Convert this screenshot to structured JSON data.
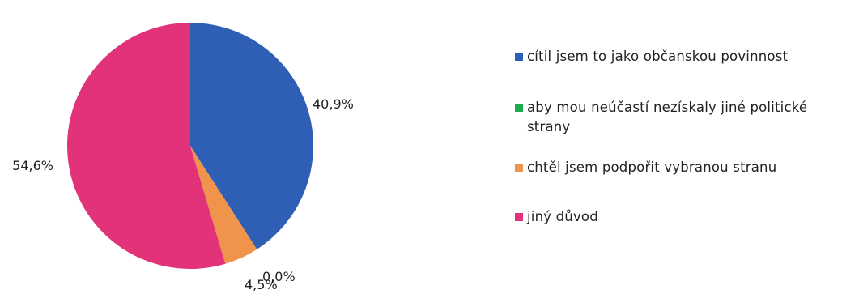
{
  "chart_data": {
    "type": "pie",
    "start_angle_deg": 0,
    "direction": "clockwise",
    "slices": [
      {
        "label": "cítil jsem to jako občanskou povinnost",
        "value": 40.9,
        "value_label": "40,9%",
        "color": "#2e5fb5"
      },
      {
        "label": "aby mou neúčastí nezískaly jiné politické strany",
        "value": 0.0,
        "value_label": "0,0%",
        "color": "#1faa4d"
      },
      {
        "label": "chtěl jsem podpořit vybranou stranu",
        "value": 4.5,
        "value_label": "4,5%",
        "color": "#f0944c"
      },
      {
        "label": "jiný důvod",
        "value": 54.6,
        "value_label": "54,6%",
        "color": "#e2337a"
      }
    ],
    "legend_position": "right"
  }
}
